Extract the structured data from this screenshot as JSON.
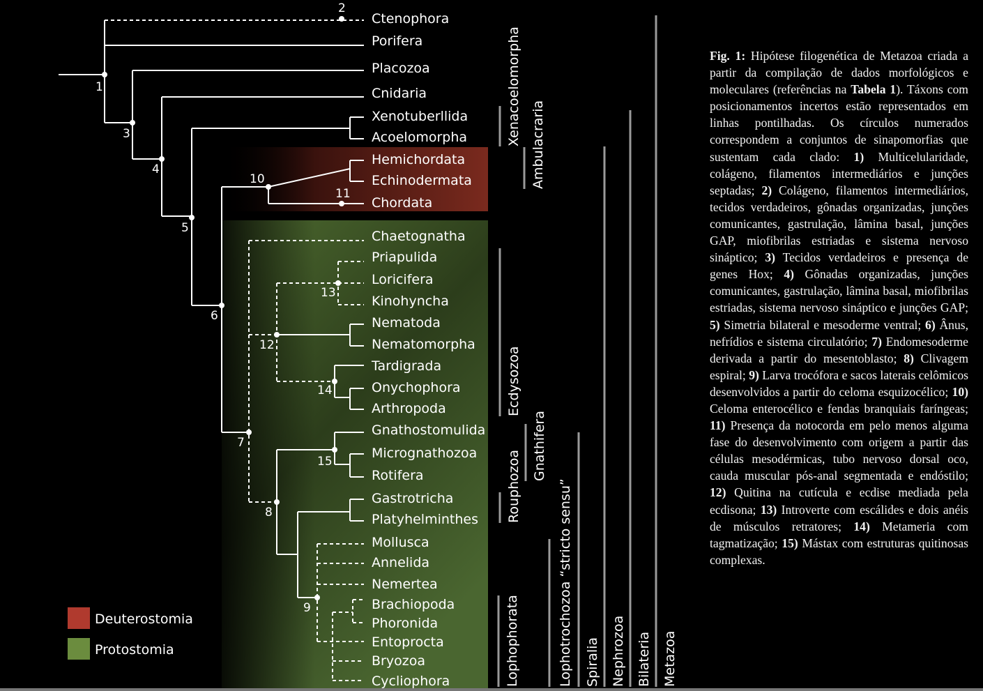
{
  "taxa": [
    "Ctenophora",
    "Porifera",
    "Placozoa",
    "Cnidaria",
    "Xenotuberllida",
    "Acoelomorpha",
    "Hemichordata",
    "Echinodermata",
    "Chordata",
    "Chaetognatha",
    "Priapulida",
    "Loricifera",
    "Kinohyncha",
    "Nematoda",
    "Nematomorpha",
    "Tardigrada",
    "Onychophora",
    "Arthropoda",
    "Gnathostomulida",
    "Micrognathozoa",
    "Rotifera",
    "Gastrotricha",
    "Platyhelminthes",
    "Mollusca",
    "Annelida",
    "Nemertea",
    "Brachiopoda",
    "Phoronida",
    "Entoprocta",
    "Bryozoa",
    "Cycliophora"
  ],
  "node_numbers": [
    "1",
    "2",
    "3",
    "4",
    "5",
    "6",
    "7",
    "8",
    "9",
    "10",
    "11",
    "12",
    "13",
    "14",
    "15"
  ],
  "clades": [
    "Xenacoelomorpha",
    "Ambulacraria",
    "Ecdysozoa",
    "Gnathifera",
    "Rouphozoa",
    "Lophophorata",
    "Lophotrochozoa “stricto sensu”",
    "Spiralia",
    "Nephrozoa",
    "Bilateria",
    "Metazoa"
  ],
  "legend": [
    {
      "label": "Deuterostomia",
      "color": "#b03a2e"
    },
    {
      "label": "Protostomia",
      "color": "#6b8c3e"
    }
  ],
  "colors": {
    "deuterostomia_band": "#7a2a1e",
    "protostomia_band": "#4e6b30"
  },
  "caption": {
    "lead": "Fig. 1:",
    "t1": " Hipótese filogenética de Metazoa criada a partir da compilação de dados morfológicos e moleculares (referências na ",
    "tab": "Tabela 1",
    "t2": "). Táxons com posicionamentos incertos estão representados em linhas pontilhadas. Os círculos numerados correspondem a conjuntos de sinapomorfias que sustentam cada clado: ",
    "items": [
      {
        "n": "1)",
        "t": " Multicelularidade, colágeno, filamentos intermediários e junções septadas; "
      },
      {
        "n": "2)",
        "t": " Colágeno, filamentos intermediários, tecidos verdadeiros, gônadas organizadas, junções comunicantes, gastrulação, lâmina basal, junções GAP, miofibrilas estriadas e sistema nervoso sináptico; "
      },
      {
        "n": "3)",
        "t": " Tecidos verdadeiros e presença de genes Hox; "
      },
      {
        "n": "4)",
        "t": " Gônadas organizadas, junções comunicantes, gastrulação, lâmina basal, miofibrilas estriadas, sistema nervoso sináptico e junções GAP; "
      },
      {
        "n": "5)",
        "t": " Simetria bilateral e mesoderme ventral; "
      },
      {
        "n": "6)",
        "t": " Ânus, nefrídios e sistema circulatório; "
      },
      {
        "n": "7)",
        "t": " Endomesoderme derivada a partir do mesentoblasto; "
      },
      {
        "n": "8)",
        "t": " Clivagem espiral; "
      },
      {
        "n": "9)",
        "t": " Larva trocófora e sacos laterais celômicos desenvolvidos a partir do celoma esquizocélico; "
      },
      {
        "n": "10)",
        "t": " Celoma enterocélico e fendas branquiais faríngeas; "
      },
      {
        "n": "11)",
        "t": " Presença da notocorda em pelo menos alguma fase do desenvolvimento com origem a partir das células mesodérmicas, tubo nervoso dorsal oco, cauda muscular pós-anal segmentada e endóstilo; "
      },
      {
        "n": "12)",
        "t": " Quitina na cutícula e ecdise mediada pela ecdisona; "
      },
      {
        "n": "13)",
        "t": " Introverte com escálides e dois anéis de músculos retratores; "
      },
      {
        "n": "14)",
        "t": " Metameria com tagmatização; "
      },
      {
        "n": "15)",
        "t": " Mástax com estruturas quitinosas complexas."
      }
    ]
  }
}
